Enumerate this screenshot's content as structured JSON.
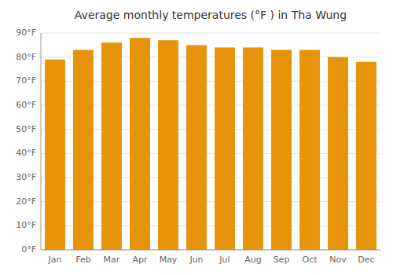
{
  "chart_data": {
    "type": "bar",
    "title": "Average monthly temperatures (°F ) in Tha Wung",
    "categories": [
      "Jan",
      "Feb",
      "Mar",
      "Apr",
      "May",
      "Jun",
      "Jul",
      "Aug",
      "Sep",
      "Oct",
      "Nov",
      "Dec"
    ],
    "values": [
      79,
      83,
      86,
      88,
      87,
      85,
      84,
      84,
      83,
      83,
      80,
      78
    ],
    "color": "#E8940A",
    "ylim": [
      0,
      90
    ],
    "yticks": [
      {
        "value": 0,
        "label": "0°F"
      },
      {
        "value": 10,
        "label": "10°F"
      },
      {
        "value": 20,
        "label": "20°F"
      },
      {
        "value": 30,
        "label": "30°F"
      },
      {
        "value": 40,
        "label": "40°F"
      },
      {
        "value": 50,
        "label": "50°F"
      },
      {
        "value": 60,
        "label": "60°F"
      },
      {
        "value": 70,
        "label": "70°F"
      },
      {
        "value": 80,
        "label": "80°F"
      },
      {
        "value": 90,
        "label": "90°F"
      }
    ],
    "grid": true
  }
}
